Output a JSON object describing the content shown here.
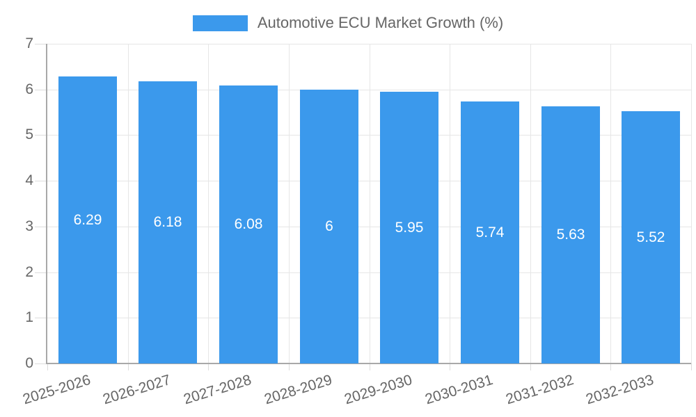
{
  "legend": {
    "series_label": "Automotive ECU Market Growth (%)"
  },
  "colors": {
    "bar": "#3B99EC",
    "grid": "#e6e6e6",
    "tick": "#dcdcdc",
    "axis_line": "#a8a8a8",
    "tick_text": "#666666",
    "value_text": "#ffffff",
    "background": "#ffffff"
  },
  "chart_data": {
    "type": "bar",
    "title": "Automotive ECU Market Growth (%)",
    "legend_entries": [
      "Automotive ECU Market Growth (%)"
    ],
    "legend_position": "top",
    "categories": [
      "2025-2026",
      "2026-2027",
      "2027-2028",
      "2028-2029",
      "2029-2030",
      "2030-2031",
      "2031-2032",
      "2032-2033"
    ],
    "values": [
      6.29,
      6.18,
      6.08,
      6,
      5.95,
      5.74,
      5.63,
      5.52
    ],
    "value_labels": [
      "6.29",
      "6.18",
      "6.08",
      "6",
      "5.95",
      "5.74",
      "5.63",
      "5.52"
    ],
    "xlabel": "",
    "ylabel": "",
    "ylim": [
      0,
      7
    ],
    "yticks": [
      0,
      1,
      2,
      3,
      4,
      5,
      6,
      7
    ],
    "grid": true,
    "x_label_rotation_deg": -17
  }
}
